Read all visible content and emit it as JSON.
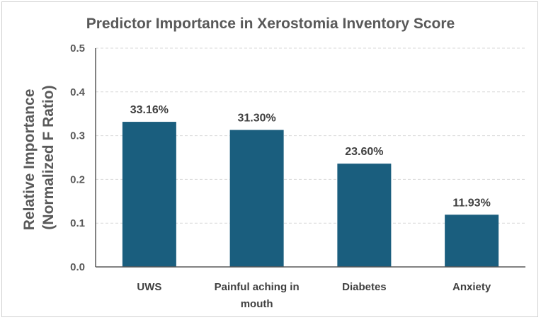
{
  "chart_data": {
    "type": "bar",
    "title": "Predictor Importance in Xerostomia Inventory Score",
    "xlabel": "",
    "ylabel_lines": [
      "Relative Importance",
      "(Normalized F Ratio)"
    ],
    "ylim": [
      0,
      0.5
    ],
    "yticks": [
      "0.0",
      "0.1",
      "0.2",
      "0.3",
      "0.4",
      "0.5"
    ],
    "grid": true,
    "categories": [
      [
        "UWS"
      ],
      [
        "Painful aching in",
        "mouth"
      ],
      [
        "Diabetes"
      ],
      [
        "Anxiety"
      ]
    ],
    "values": [
      0.3316,
      0.313,
      0.236,
      0.1193
    ],
    "data_labels": [
      "33.16%",
      "31.30%",
      "23.60%",
      "11.93%"
    ],
    "bar_color": "#1a5e7e"
  }
}
